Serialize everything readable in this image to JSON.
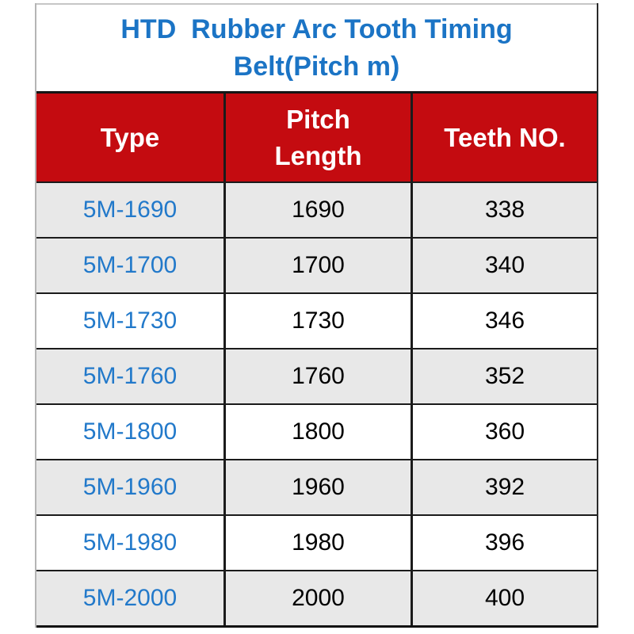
{
  "title": "HTD  Rubber Arc Tooth Timing\nBelt(Pitch m)",
  "colors": {
    "title_blue": "#1b74c5",
    "type_blue": "#2279ca",
    "header_red": "#c40b10",
    "header_text": "#ffffff",
    "row_shade": "#e8e8e8",
    "row_plain": "#ffffff",
    "grid_line": "#1b1b1b",
    "value_text": "#000000"
  },
  "table": {
    "columns": [
      "Type",
      "Pitch\nLength",
      "Teeth NO."
    ],
    "rows": [
      {
        "type": "5M-1690",
        "pitch_length": "1690",
        "teeth_no": "338"
      },
      {
        "type": "5M-1700",
        "pitch_length": "1700",
        "teeth_no": "340"
      },
      {
        "type": "5M-1730",
        "pitch_length": "1730",
        "teeth_no": "346"
      },
      {
        "type": "5M-1760",
        "pitch_length": "1760",
        "teeth_no": "352"
      },
      {
        "type": "5M-1800",
        "pitch_length": "1800",
        "teeth_no": "360"
      },
      {
        "type": "5M-1960",
        "pitch_length": "1960",
        "teeth_no": "392"
      },
      {
        "type": "5M-1980",
        "pitch_length": "1980",
        "teeth_no": "396"
      },
      {
        "type": "5M-2000",
        "pitch_length": "2000",
        "teeth_no": "400"
      }
    ]
  },
  "chart_data": {
    "type": "table",
    "title": "HTD Rubber Arc Tooth Timing Belt(Pitch m)",
    "categories": [
      "5M-1690",
      "5M-1700",
      "5M-1730",
      "5M-1760",
      "5M-1800",
      "5M-1960",
      "5M-1980",
      "5M-2000"
    ],
    "series": [
      {
        "name": "Pitch Length",
        "values": [
          1690,
          1700,
          1730,
          1760,
          1800,
          1960,
          1980,
          2000
        ]
      },
      {
        "name": "Teeth NO.",
        "values": [
          338,
          340,
          346,
          352,
          360,
          392,
          396,
          400
        ]
      }
    ]
  }
}
